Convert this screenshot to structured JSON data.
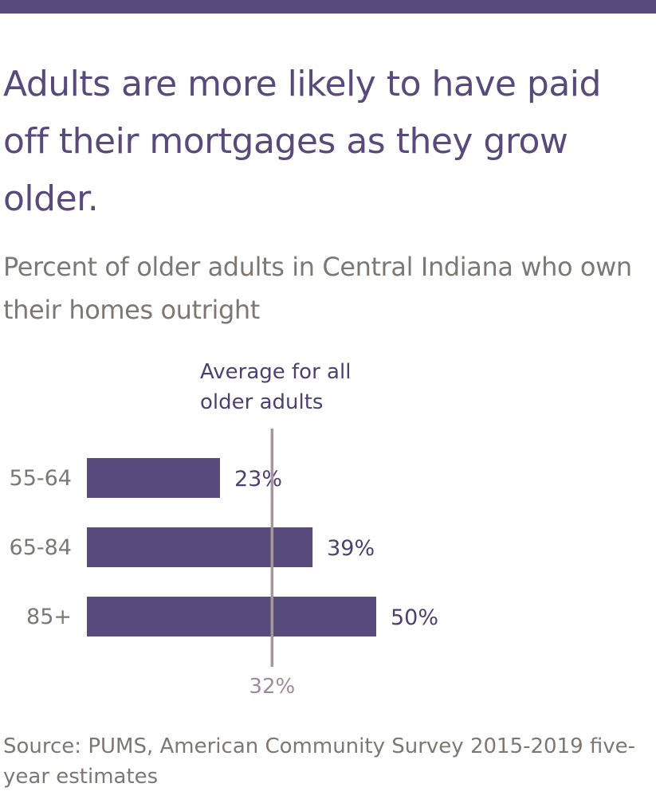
{
  "title": "Adults are more likely to have paid off their mortgages as they grow older.",
  "subtitle": "Percent of older adults in Central Indiana who own their homes outright",
  "source": "Source: PUMS, American Community Survey 2015-2019 five-year estimates",
  "colors": {
    "accent": "#594a7c",
    "bar": "#594a7c",
    "reference_line": "#a6979f",
    "reference_label": "#9c8b9c",
    "muted_text": "#7d7873",
    "value_text": "#4e4172"
  },
  "chart_data": {
    "type": "bar",
    "orientation": "horizontal",
    "categories": [
      "55-64",
      "65-84",
      "85+"
    ],
    "values": [
      23,
      39,
      50
    ],
    "value_labels": [
      "23%",
      "39%",
      "50%"
    ],
    "value_suffix": "%",
    "title": "Percent of older adults in Central Indiana who own their homes outright",
    "xlabel": "",
    "ylabel": "",
    "xlim": [
      0,
      50
    ],
    "grid": false,
    "reference_line": {
      "value": 32,
      "label_lines": [
        "Average for all",
        "older adults"
      ],
      "value_label": "32%"
    }
  }
}
